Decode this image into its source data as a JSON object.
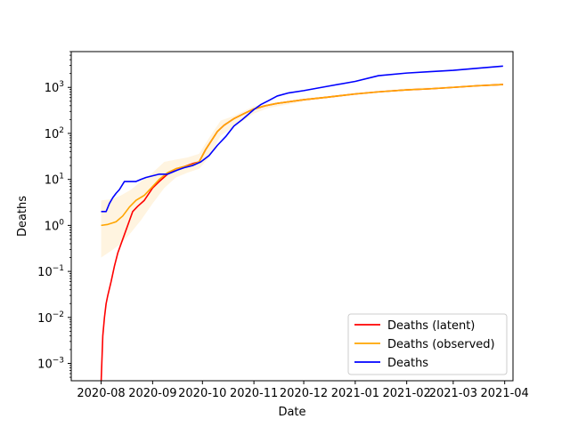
{
  "chart_data": {
    "type": "line",
    "title": "",
    "xlabel": "Date",
    "ylabel": "Deaths",
    "yscale": "log",
    "xlim": [
      "2020-07-14",
      "2021-04-06"
    ],
    "ylim": [
      0.00042,
      6000
    ],
    "x_ticks": [
      "2020-08",
      "2020-09",
      "2020-10",
      "2020-11",
      "2020-12",
      "2021-01",
      "2021-02",
      "2021-03",
      "2021-04"
    ],
    "y_ticks": [
      {
        "value": 0.001,
        "base": "10",
        "exp": "−3"
      },
      {
        "value": 0.01,
        "base": "10",
        "exp": "−2"
      },
      {
        "value": 0.1,
        "base": "10",
        "exp": "−1"
      },
      {
        "value": 1,
        "base": "10",
        "exp": "0"
      },
      {
        "value": 10,
        "base": "10",
        "exp": "1"
      },
      {
        "value": 100,
        "base": "10",
        "exp": "2"
      },
      {
        "value": 1000,
        "base": "10",
        "exp": "3"
      }
    ],
    "grid": false,
    "legend": {
      "position": "bottom-right"
    },
    "band": {
      "color": "#ffa500",
      "x": [
        "2020-08-01",
        "2020-08-07",
        "2020-08-13",
        "2020-08-19",
        "2020-08-25",
        "2020-09-01",
        "2020-09-08",
        "2020-09-15",
        "2020-09-22",
        "2020-09-29",
        "2020-10-05",
        "2020-10-12",
        "2020-10-20",
        "2020-11-01",
        "2020-11-10",
        "2020-12-01",
        "2021-01-01",
        "2021-02-01",
        "2021-03-01",
        "2021-03-31"
      ],
      "lower": [
        0.2,
        0.28,
        0.4,
        0.7,
        1.3,
        3,
        6.5,
        11,
        14,
        17,
        30,
        90,
        140,
        270,
        360,
        490,
        680,
        870,
        1000,
        1150
      ],
      "upper": [
        3.5,
        3.7,
        4.5,
        6,
        9,
        14,
        24,
        27,
        30,
        36,
        80,
        190,
        240,
        390,
        430,
        570,
        760,
        950,
        1080,
        1260
      ]
    },
    "series": [
      {
        "name": "Deaths (latent)",
        "color": "#ff0000",
        "x": [
          "2020-08-01",
          "2020-08-02",
          "2020-08-03",
          "2020-08-04",
          "2020-08-05",
          "2020-08-07",
          "2020-08-09",
          "2020-08-11",
          "2020-08-14",
          "2020-08-17",
          "2020-08-20",
          "2020-08-23",
          "2020-08-27",
          "2020-09-01",
          "2020-09-05",
          "2020-09-10",
          "2020-09-15",
          "2020-09-20",
          "2020-09-25",
          "2020-09-29",
          "2020-10-03",
          "2020-10-07",
          "2020-10-10",
          "2020-10-14",
          "2020-10-20",
          "2020-10-27",
          "2020-11-01",
          "2020-11-08",
          "2020-11-15",
          "2020-12-01",
          "2020-12-15",
          "2021-01-01",
          "2021-01-15",
          "2021-02-01",
          "2021-02-15",
          "2021-03-01",
          "2021-03-15",
          "2021-03-31"
        ],
        "values": [
          0.0004,
          0.004,
          0.01,
          0.02,
          0.03,
          0.06,
          0.13,
          0.25,
          0.5,
          1,
          2,
          2.6,
          3.5,
          6.5,
          9,
          13,
          17,
          19,
          22,
          24,
          45,
          75,
          110,
          150,
          210,
          280,
          340,
          400,
          450,
          540,
          610,
          720,
          800,
          880,
          930,
          1000,
          1080,
          1150
        ]
      },
      {
        "name": "Deaths (observed)",
        "color": "#ffa500",
        "x": [
          "2020-08-01",
          "2020-08-05",
          "2020-08-10",
          "2020-08-14",
          "2020-08-18",
          "2020-08-22",
          "2020-08-27",
          "2020-09-01",
          "2020-09-05",
          "2020-09-10",
          "2020-09-15",
          "2020-09-20",
          "2020-09-25",
          "2020-09-29",
          "2020-10-03",
          "2020-10-07",
          "2020-10-10",
          "2020-10-14",
          "2020-10-20",
          "2020-10-27",
          "2020-11-01",
          "2020-11-08",
          "2020-11-15",
          "2020-12-01",
          "2020-12-15",
          "2021-01-01",
          "2021-01-15",
          "2021-02-01",
          "2021-02-15",
          "2021-03-01",
          "2021-03-15",
          "2021-03-31"
        ],
        "values": [
          1,
          1.05,
          1.2,
          1.6,
          2.5,
          3.5,
          4.5,
          7,
          10,
          14,
          17,
          19,
          21,
          24,
          45,
          75,
          110,
          150,
          210,
          280,
          340,
          400,
          450,
          540,
          610,
          720,
          800,
          880,
          930,
          1000,
          1080,
          1150
        ]
      },
      {
        "name": "Deaths",
        "color": "#0000ff",
        "x": [
          "2020-08-01",
          "2020-08-04",
          "2020-08-06",
          "2020-08-08",
          "2020-08-10",
          "2020-08-12",
          "2020-08-15",
          "2020-08-22",
          "2020-08-25",
          "2020-08-28",
          "2020-09-05",
          "2020-09-10",
          "2020-09-16",
          "2020-09-20",
          "2020-09-25",
          "2020-09-30",
          "2020-10-05",
          "2020-10-10",
          "2020-10-15",
          "2020-10-20",
          "2020-10-25",
          "2020-11-01",
          "2020-11-05",
          "2020-11-10",
          "2020-11-15",
          "2020-11-22",
          "2020-12-01",
          "2020-12-15",
          "2021-01-01",
          "2021-01-15",
          "2021-02-01",
          "2021-02-15",
          "2021-03-01",
          "2021-03-15",
          "2021-03-31"
        ],
        "values": [
          2,
          2,
          3,
          4,
          5,
          6,
          9,
          9,
          10,
          11,
          13,
          13,
          16,
          18,
          20,
          24,
          33,
          55,
          85,
          145,
          200,
          330,
          420,
          520,
          650,
          760,
          850,
          1050,
          1350,
          1800,
          2050,
          2200,
          2350,
          2600,
          2900
        ]
      }
    ]
  }
}
